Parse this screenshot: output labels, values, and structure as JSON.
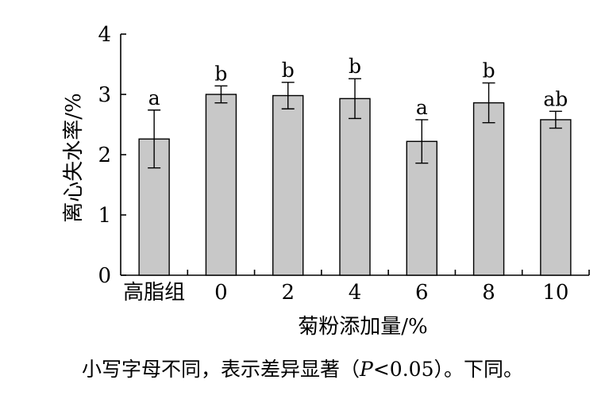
{
  "chart_data": {
    "type": "bar",
    "categories": [
      "高脂组",
      "0",
      "2",
      "4",
      "6",
      "8",
      "10"
    ],
    "values": [
      2.26,
      3.0,
      2.98,
      2.93,
      2.22,
      2.86,
      2.58
    ],
    "errors": [
      0.48,
      0.14,
      0.22,
      0.33,
      0.36,
      0.33,
      0.14
    ],
    "letters": [
      "a",
      "b",
      "b",
      "b",
      "a",
      "b",
      "ab"
    ],
    "xlabel": "菊粉添加量/%",
    "ylabel": "离心失水率/%",
    "ylim": [
      0,
      4
    ],
    "yticks": [
      "0",
      "1",
      "2",
      "3",
      "4"
    ],
    "bar_color": "#c8c8c8",
    "grid": false
  },
  "caption": {
    "before": "小写字母不同，表示差异显著（",
    "italic": "P",
    "after": "<0.05）。下同。"
  }
}
